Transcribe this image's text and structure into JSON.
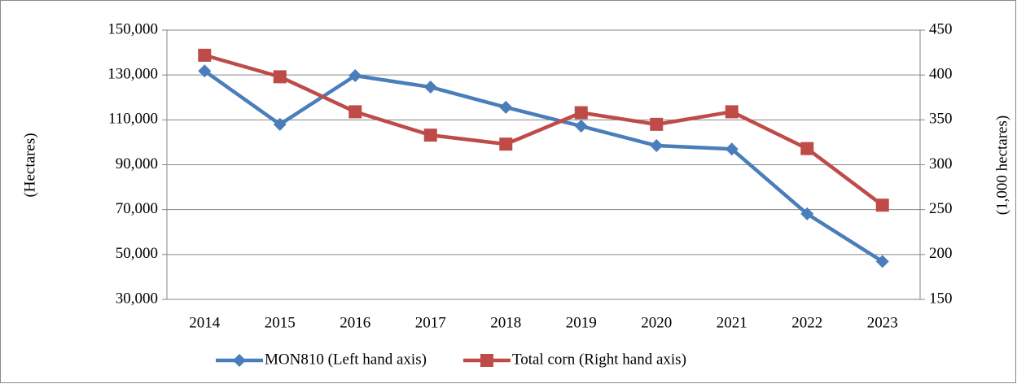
{
  "chart_data": {
    "type": "line",
    "categories": [
      "2014",
      "2015",
      "2016",
      "2017",
      "2018",
      "2019",
      "2020",
      "2021",
      "2022",
      "2023"
    ],
    "series": [
      {
        "name": "MON810 (Left hand axis)",
        "color": "#4a7ebb",
        "marker": "diamond",
        "axis": "y",
        "values": [
          131800,
          108000,
          129700,
          124600,
          115600,
          107200,
          98500,
          97000,
          68100,
          46900
        ]
      },
      {
        "name": "Total corn (Right hand axis)",
        "color": "#be4b48",
        "marker": "square",
        "axis": "y2",
        "values": [
          422,
          398,
          359,
          333,
          323,
          358,
          345,
          359,
          318,
          255
        ]
      }
    ],
    "ylabel": "(Hectares)",
    "y2label": "(1,000 hectares)",
    "ylim": [
      30000,
      150000
    ],
    "yticks": [
      {
        "value": 30000,
        "label": "30,000"
      },
      {
        "value": 50000,
        "label": "50,000"
      },
      {
        "value": 70000,
        "label": "70,000"
      },
      {
        "value": 90000,
        "label": "90,000"
      },
      {
        "value": 110000,
        "label": "110,000"
      },
      {
        "value": 130000,
        "label": "130,000"
      },
      {
        "value": 150000,
        "label": "150,000"
      }
    ],
    "y2lim": [
      150,
      450
    ],
    "y2ticks": [
      150,
      200,
      250,
      300,
      350,
      400,
      450
    ],
    "grid": true,
    "legend": "bottom"
  }
}
